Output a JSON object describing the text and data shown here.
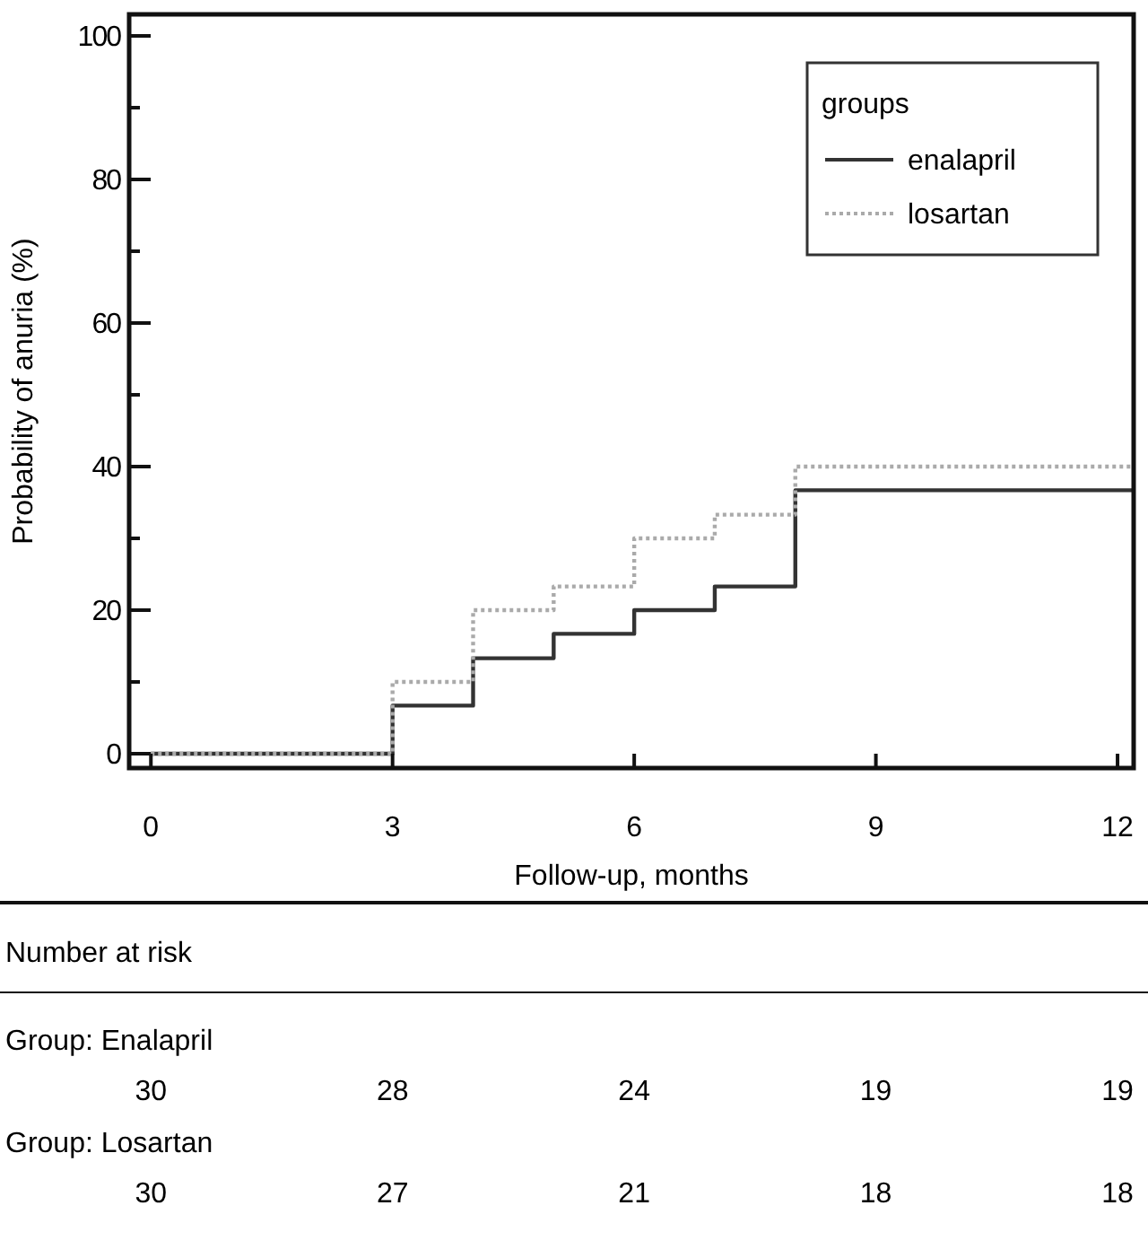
{
  "chart_data": {
    "type": "step",
    "xlabel": "Follow-up, months",
    "ylabel": "Probability of anuria (%)",
    "legend_title": "groups",
    "series": [
      {
        "name": "enalapril",
        "color": "#333333",
        "line_style": "solid",
        "x": [
          0,
          3,
          4,
          5,
          6,
          7,
          8,
          12.2
        ],
        "values": [
          0,
          6.7,
          13.3,
          16.7,
          20,
          23.3,
          36.7,
          36.7
        ]
      },
      {
        "name": "losartan",
        "color": "#aaaaaa",
        "line_style": "dotted",
        "x": [
          0,
          3,
          4,
          5,
          6,
          7,
          8,
          12.2
        ],
        "values": [
          0,
          10,
          20,
          23.3,
          30,
          33.3,
          40,
          40
        ]
      }
    ],
    "xlim": [
      -0.27,
      12.2
    ],
    "ylim": [
      -2,
      103
    ],
    "xticks": [
      0,
      3,
      6,
      9,
      12
    ],
    "yticks": [
      0,
      {
        "value": 10,
        "label": null
      },
      20,
      {
        "value": 30,
        "label": null
      },
      40,
      {
        "value": 50,
        "label": null
      },
      60,
      {
        "value": 70,
        "label": null
      },
      80,
      {
        "value": 90,
        "label": null
      },
      100
    ],
    "grid": false,
    "legend": "top right",
    "annotations": [
      "Number at risk",
      "Group: Enalapril",
      "30",
      "28",
      "24",
      "19",
      "19",
      "Group: Losartan",
      "30",
      "27",
      "21",
      "18",
      "18"
    ]
  }
}
